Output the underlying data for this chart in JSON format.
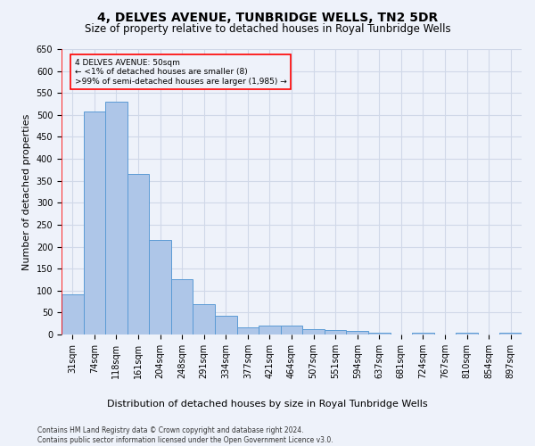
{
  "title": "4, DELVES AVENUE, TUNBRIDGE WELLS, TN2 5DR",
  "subtitle": "Size of property relative to detached houses in Royal Tunbridge Wells",
  "xlabel": "Distribution of detached houses by size in Royal Tunbridge Wells",
  "ylabel": "Number of detached properties",
  "footer_line1": "Contains HM Land Registry data © Crown copyright and database right 2024.",
  "footer_line2": "Contains public sector information licensed under the Open Government Licence v3.0.",
  "categories": [
    "31sqm",
    "74sqm",
    "118sqm",
    "161sqm",
    "204sqm",
    "248sqm",
    "291sqm",
    "334sqm",
    "377sqm",
    "421sqm",
    "464sqm",
    "507sqm",
    "551sqm",
    "594sqm",
    "637sqm",
    "681sqm",
    "724sqm",
    "767sqm",
    "810sqm",
    "854sqm",
    "897sqm"
  ],
  "values": [
    91,
    507,
    530,
    365,
    215,
    126,
    70,
    42,
    16,
    20,
    20,
    12,
    11,
    8,
    5,
    0,
    5,
    0,
    4,
    0,
    4
  ],
  "bar_color": "#aec6e8",
  "bar_edge_color": "#5b9bd5",
  "annotation_box_text_line1": "4 DELVES AVENUE: 50sqm",
  "annotation_box_text_line2": "← <1% of detached houses are smaller (8)",
  "annotation_box_text_line3": ">99% of semi-detached houses are larger (1,985) →",
  "annotation_line_color": "red",
  "annotation_box_edge_color": "red",
  "ylim": [
    0,
    650
  ],
  "yticks": [
    0,
    50,
    100,
    150,
    200,
    250,
    300,
    350,
    400,
    450,
    500,
    550,
    600,
    650
  ],
  "grid_color": "#d0d8e8",
  "background_color": "#eef2fa",
  "title_fontsize": 10,
  "subtitle_fontsize": 8.5,
  "ylabel_fontsize": 8,
  "xlabel_fontsize": 8,
  "tick_fontsize": 7,
  "annotation_fontsize": 6.5,
  "footer_fontsize": 5.5
}
